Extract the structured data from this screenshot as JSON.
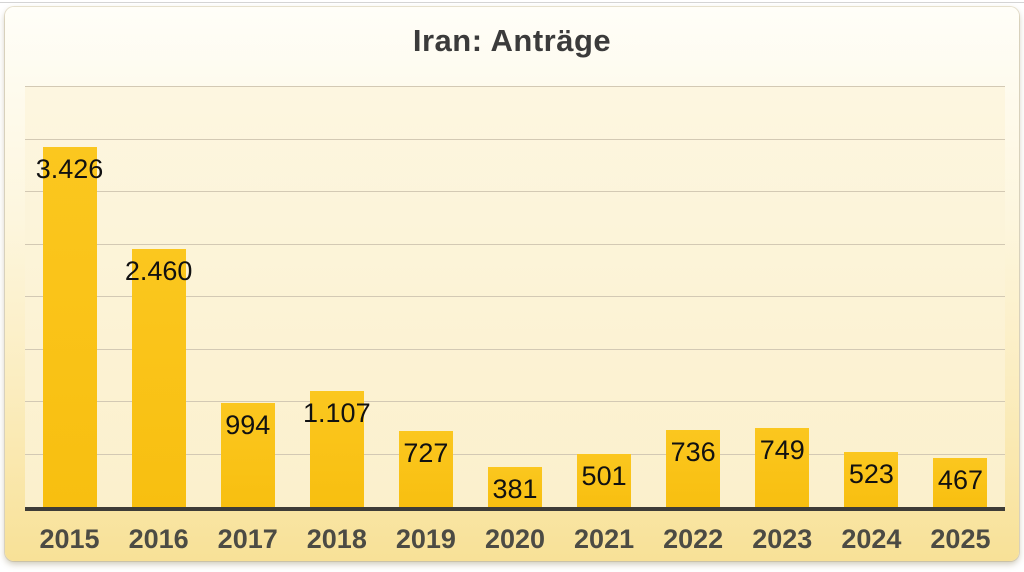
{
  "page": {
    "title": "Iran: Anträge"
  },
  "colors": {
    "bar": "#F8BF10",
    "bar_light": "#FBC71F",
    "gridline": "#D3C9B4",
    "axis_line": "#3E3C37",
    "value_label": "#111111",
    "tick_label": "#4C4B44",
    "title": "#3B3B3B",
    "panel_top": "#FFFEF8",
    "panel_bottom": "#F8E197"
  },
  "chart_data": {
    "type": "bar",
    "title": "Iran: Anträge",
    "xlabel": "",
    "ylabel": "",
    "categories": [
      "2015",
      "2016",
      "2017",
      "2018",
      "2019",
      "2020",
      "2021",
      "2022",
      "2023",
      "2024",
      "2025"
    ],
    "values": [
      3426,
      2460,
      994,
      1107,
      727,
      381,
      501,
      736,
      749,
      523,
      467
    ],
    "value_labels": [
      "3.426",
      "2.460",
      "994",
      "1.107",
      "727",
      "381",
      "501",
      "736",
      "749",
      "523",
      "467"
    ],
    "ylim": [
      0,
      4000
    ],
    "gridline_step": 500,
    "grid": true,
    "y_axis_tick_labels_visible": false,
    "legend": "none",
    "value_label_position": "inside-end"
  }
}
